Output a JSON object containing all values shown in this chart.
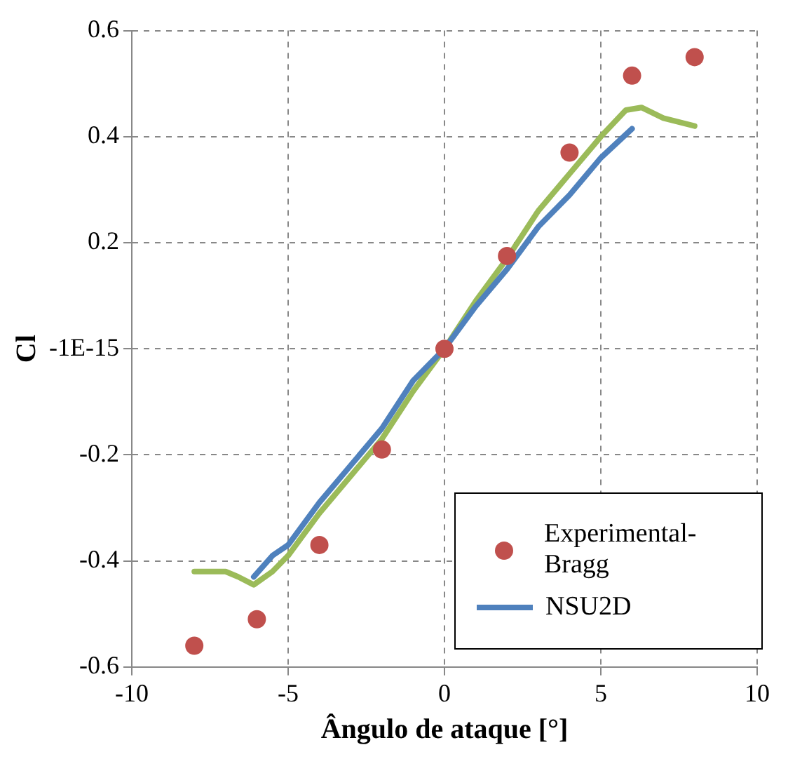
{
  "chart_data": {
    "type": "line",
    "xlabel": "Ângulo de ataque [°]",
    "ylabel": "Cl",
    "xlim": [
      -10,
      10
    ],
    "xticks": [
      -10,
      -5,
      0,
      5,
      10
    ],
    "ylim": [
      -0.6,
      0.6
    ],
    "yticks": [
      -0.6,
      -0.4,
      -0.2,
      {
        "value": 0,
        "label": "-1E-15"
      },
      0.2,
      0.4,
      0.6
    ],
    "grid": true,
    "legend": "bottom right",
    "series": [
      {
        "name": "Experimental-Bragg",
        "type": "scatter",
        "marker": "circle",
        "color": "#c0504d",
        "x": [
          -8,
          -6,
          -4,
          -2,
          0,
          2,
          4,
          6,
          8
        ],
        "values": [
          -0.56,
          -0.51,
          -0.37,
          -0.19,
          0.0,
          0.175,
          0.37,
          0.515,
          0.55
        ]
      },
      {
        "name": "NSU2D",
        "marker": "none",
        "color": "#4f81bd",
        "x": [
          -6.1,
          -5.5,
          -5,
          -4,
          -3,
          -2,
          -1,
          0,
          1,
          2,
          3,
          4,
          5,
          6
        ],
        "values": [
          -0.43,
          -0.39,
          -0.37,
          -0.29,
          -0.22,
          -0.15,
          -0.06,
          0.0,
          0.08,
          0.15,
          0.23,
          0.29,
          0.36,
          0.415
        ]
      },
      {
        "marker": "none",
        "color": "#9bbb59",
        "x": [
          -8,
          -7,
          -6.6,
          -6.1,
          -5.5,
          -5,
          -4,
          -3,
          -2,
          -1,
          0,
          1,
          2,
          3,
          4,
          5,
          5.8,
          6.3,
          7,
          8
        ],
        "values": [
          -0.42,
          -0.42,
          -0.43,
          -0.445,
          -0.42,
          -0.39,
          -0.31,
          -0.24,
          -0.17,
          -0.08,
          0.0,
          0.09,
          0.17,
          0.26,
          0.33,
          0.4,
          0.45,
          0.455,
          0.435,
          0.42
        ]
      }
    ]
  }
}
